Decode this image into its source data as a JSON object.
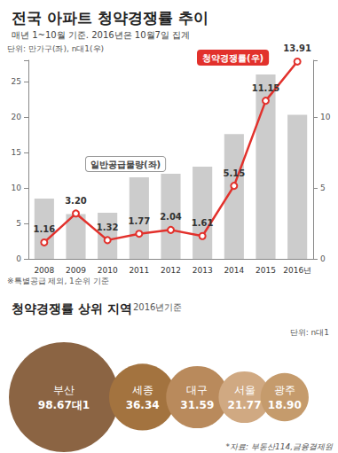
{
  "chart_data": [
    {
      "type": "bar",
      "title": "전국 아파트 청약경쟁률 추이",
      "subtitle": "매년 1~10월 기준. 2016년은 10월7일 집계",
      "units": "단위: 만가구(좌), n대1(우)",
      "note": "※특별공급 제외, 1순위 기준",
      "categories": [
        "2008",
        "2009",
        "2010",
        "2011",
        "2012",
        "2013",
        "2014",
        "2015",
        "2016년"
      ],
      "series": [
        {
          "name": "일반공급물량(좌)",
          "type": "bar",
          "color": "#cccccc",
          "values": [
            8.5,
            6.3,
            6.5,
            11.5,
            12.0,
            13.0,
            17.6,
            26.0,
            20.3
          ]
        },
        {
          "name": "청약경쟁률(우)",
          "type": "line",
          "axis": "y2",
          "color": "#e2312c",
          "marker": "circle",
          "data_labels": true,
          "values": [
            1.16,
            3.2,
            1.32,
            1.77,
            2.04,
            1.61,
            5.15,
            11.15,
            13.91
          ],
          "value_labels": [
            "1.16",
            "3.20",
            "1.32",
            "1.77",
            "2.04",
            "1.61",
            "5.15",
            "11.15",
            "13.91"
          ]
        }
      ],
      "ylim": [
        0,
        28
      ],
      "yticks": [
        0,
        5,
        10,
        15,
        20,
        25
      ],
      "y2lim": [
        0,
        14
      ],
      "y2ticks": [
        0,
        5,
        10
      ],
      "grid": false
    },
    {
      "type": "bubble",
      "title": "청약경쟁률 상위 지역",
      "subtitle": "2016년기준",
      "units": "단위: n대1",
      "source": "*자료: 부동산114,금융결제원",
      "categories": [
        "부산",
        "세종",
        "대구",
        "서울",
        "광주"
      ],
      "values": [
        98.67,
        36.34,
        31.59,
        21.77,
        18.9
      ],
      "value_labels": [
        "98.67대1",
        "36.34",
        "31.59",
        "21.77",
        "18.90"
      ],
      "colors": [
        "#8b6443",
        "#a3733f",
        "#b98a5c",
        "#d0a982",
        "#c59b6c"
      ],
      "data_labels": true,
      "tick_labels": false
    }
  ]
}
